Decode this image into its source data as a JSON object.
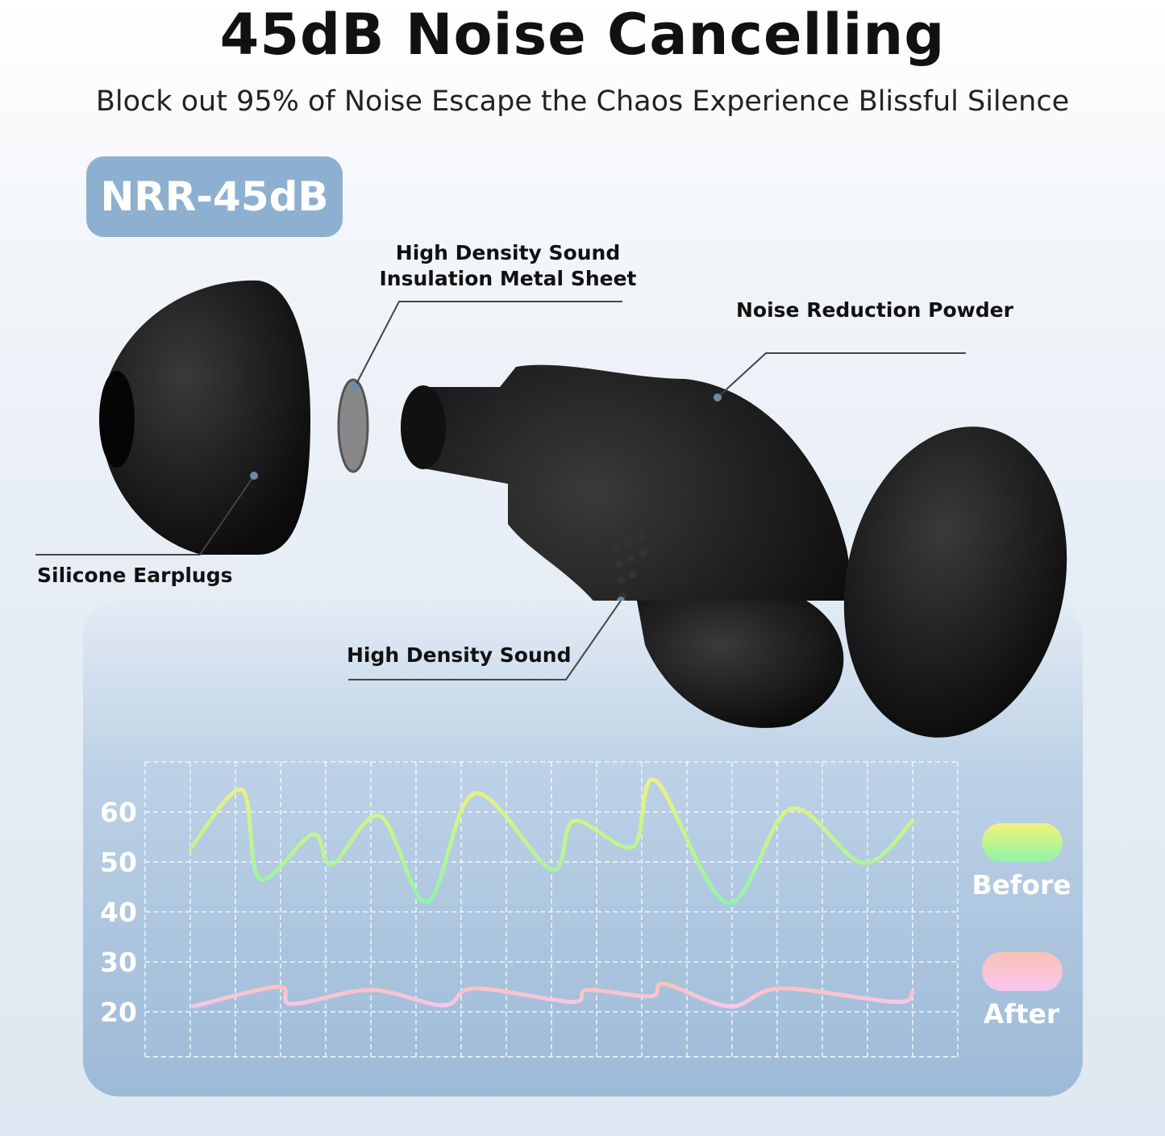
{
  "header": {
    "title": "45dB Noise Cancelling",
    "subtitle": "Block out 95% of Noise Escape the Chaos Experience Blissful Silence"
  },
  "badge": {
    "text": "NRR-45dB",
    "color": "#8eb0d0"
  },
  "callouts": {
    "metal_sheet": [
      "High Density Sound",
      "Insulation Metal Sheet"
    ],
    "powder": "Noise Reduction Powder",
    "silicone": "Silicone Earplugs",
    "sound": "High Density Sound"
  },
  "chart_data": {
    "type": "line",
    "grid": true,
    "legend": "right",
    "ylim": [
      11,
      70
    ],
    "yticks": [
      "60",
      "50",
      "40",
      "30",
      "20"
    ],
    "ytick_values": [
      60,
      50,
      40,
      30,
      20
    ],
    "xlim": [
      -1,
      16
    ],
    "series": [
      {
        "name": "Before",
        "colors": [
          "#f2f27a",
          "#8ef5a8"
        ],
        "x": [
          0,
          1.14,
          1.54,
          2.71,
          3.14,
          4.2,
          5.25,
          6.3,
          8.0,
          8.5,
          9.8,
          10.3,
          11.9,
          13.3,
          14.9,
          16
        ],
        "y": [
          52.6,
          64.4,
          46.6,
          55.5,
          49.5,
          59.2,
          42,
          63.7,
          48.5,
          58.2,
          53,
          66.3,
          41.8,
          60.6,
          49.8,
          58.2
        ]
      },
      {
        "name": "After",
        "colors": [
          "#fbc2b6",
          "#f8c6f0"
        ],
        "x": [
          0.07,
          1.95,
          2.25,
          4.0,
          5.6,
          6.3,
          8.45,
          8.8,
          10.2,
          10.5,
          11.95,
          13.07,
          15.6,
          16
        ],
        "y": [
          21.1,
          25,
          21.6,
          24.4,
          21.3,
          24.7,
          22,
          24.4,
          23.1,
          25.6,
          21.1,
          24.7,
          22,
          24
        ]
      }
    ]
  }
}
